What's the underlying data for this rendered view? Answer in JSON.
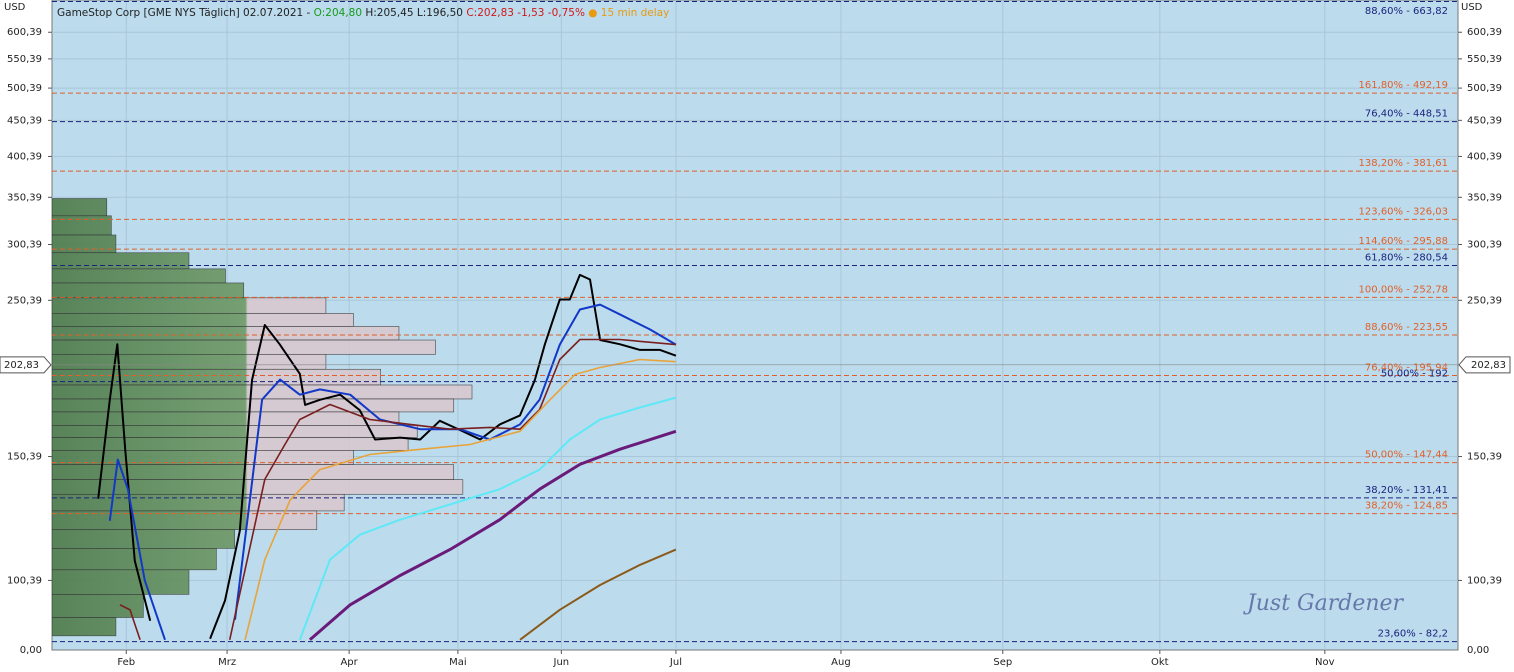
{
  "header": {
    "name": "GameStop Corp [GME NYS Täglich] 02.07.2021 - ",
    "open": "O:204,80",
    "high_low": " H:205,45 L:196,50 ",
    "close": "C:202,83 -1,53 -0,75%",
    "delay": " ● 15 min delay"
  },
  "currency_left": "USD",
  "currency_right": "USD",
  "axis_floor_label_left": "0,00",
  "axis_floor_label_right": "0,00",
  "watermark": "Just  Gardener",
  "chart_data": {
    "type": "line",
    "log_scale": true,
    "grid": true,
    "xlim": [
      0,
      265
    ],
    "ylim": [
      80,
      667
    ],
    "xticks": [
      {
        "value": 14,
        "label": "Feb"
      },
      {
        "value": 33,
        "label": "Mrz"
      },
      {
        "value": 56,
        "label": "Apr"
      },
      {
        "value": 76.5,
        "label": "Mai"
      },
      {
        "value": 96,
        "label": "Jun"
      },
      {
        "value": 117.6,
        "label": "Jul"
      },
      {
        "value": 148.7,
        "label": "Aug"
      },
      {
        "value": 179.2,
        "label": "Sep"
      },
      {
        "value": 208.8,
        "label": "Okt"
      },
      {
        "value": 239.9,
        "label": "Nov"
      }
    ],
    "yticks": [
      {
        "value": 600.39,
        "label": "600,39"
      },
      {
        "value": 550.39,
        "label": "550,39"
      },
      {
        "value": 500.39,
        "label": "500,39"
      },
      {
        "value": 450.39,
        "label": "450,39"
      },
      {
        "value": 400.39,
        "label": "400,39"
      },
      {
        "value": 350.39,
        "label": "350,39"
      },
      {
        "value": 300.39,
        "label": "300,39"
      },
      {
        "value": 250.39,
        "label": "250,39"
      },
      {
        "value": 150.39,
        "label": "150,39"
      },
      {
        "value": 100.39,
        "label": "100,39"
      }
    ],
    "last_price": {
      "value": 202.83,
      "label": "202,83"
    },
    "levels": [
      {
        "label": "88,60% - 663,82",
        "value": 663.82,
        "color": "#1a237e"
      },
      {
        "label": "161,80% - 492,19",
        "value": 492.19,
        "color": "#e0602a"
      },
      {
        "label": "76,40% - 448,51",
        "value": 448.51,
        "color": "#1a237e"
      },
      {
        "label": "138,20% - 381,61",
        "value": 381.61,
        "color": "#e0602a"
      },
      {
        "label": "123,60% - 326,03",
        "value": 326.03,
        "color": "#e0602a"
      },
      {
        "label": "114,60% - 295,88",
        "value": 295.88,
        "color": "#e0602a"
      },
      {
        "label": "61,80% - 280,54",
        "value": 280.54,
        "color": "#1a237e"
      },
      {
        "label": "100,00% - 252,78",
        "value": 252.78,
        "color": "#e0602a"
      },
      {
        "label": "88,60% - 223,55",
        "value": 223.55,
        "color": "#e0602a"
      },
      {
        "label": "76,40% - 195,94",
        "value": 195.94,
        "color": "#e0602a"
      },
      {
        "label": "50,00% - 192",
        "value": 192,
        "color": "#1a237e"
      },
      {
        "label": "50,00% - 147,44",
        "value": 147.44,
        "color": "#e0602a"
      },
      {
        "label": "38,20% - 131,41",
        "value": 131.41,
        "color": "#1a237e"
      },
      {
        "label": "38,20% - 124,85",
        "value": 124.85,
        "color": "#e0602a"
      },
      {
        "label": "23,60% - 82,2",
        "value": 82.2,
        "color": "#1a237e"
      }
    ],
    "volume_profile": {
      "prices": [
        340,
        320,
        300,
        285,
        270,
        260,
        245,
        235,
        225,
        215,
        205,
        195,
        185,
        178,
        170,
        163,
        157,
        150,
        143,
        136,
        130,
        122,
        115,
        108,
        100,
        92,
        86
      ],
      "volumes": [
        60,
        65,
        70,
        150,
        190,
        210,
        300,
        330,
        380,
        420,
        300,
        360,
        460,
        440,
        380,
        400,
        390,
        330,
        440,
        450,
        320,
        290,
        200,
        180,
        150,
        100,
        70
      ]
    },
    "series": [
      {
        "color": "#000000",
        "width": 2,
        "x": [
          8.7,
          10.9,
          12.3,
          13.8,
          15.6,
          18.5,
          24,
          29.8,
          32.6,
          35.4,
          37.7,
          40.1,
          42.9,
          46.7,
          47.7,
          50.5,
          54.3,
          58.0,
          60.9,
          65.6,
          69.4,
          73.1,
          76.9,
          80.7,
          84.4,
          88.2,
          91.0,
          92.9,
          95.7,
          97.6,
          99.5,
          101.4,
          103.3,
          107.0,
          110.8,
          114.6,
          117.6
        ],
        "values": [
          131,
          181,
          217,
          154,
          107,
          88,
          null,
          83,
          94,
          118,
          193,
          231,
          217,
          197,
          178,
          181,
          184,
          175,
          159,
          160,
          159,
          169,
          164,
          159,
          167,
          172,
          193,
          217,
          251,
          251,
          272,
          268,
          220,
          217,
          213,
          213,
          209
        ]
      },
      {
        "color": "#1238c8",
        "width": 2,
        "x": [
          10.9,
          12.4,
          14.3,
          17.5,
          21.3,
          27,
          34.5,
          37.3,
          39.6,
          43.0,
          46.7,
          50.5,
          56.2,
          61.8,
          69.4,
          76.9,
          82.5,
          88.2,
          91.9,
          95.7,
          99.5,
          103.3,
          107.0,
          112.7,
          117.6
        ],
        "values": [
          122,
          148.9,
          135.2,
          100.4,
          82.7,
          null,
          88.3,
          130.6,
          181.1,
          193.3,
          184,
          187.2,
          184,
          169.7,
          164.4,
          164.4,
          159,
          167,
          181.1,
          216.7,
          243,
          246.9,
          239.2,
          227.7,
          216.7
        ]
      },
      {
        "color": "#7a1f1f",
        "width": 1.6,
        "x": [
          12.8,
          14.7,
          16.6,
          25,
          33.5,
          36.4,
          40.1,
          43.9,
          46.7,
          52.4,
          59.9,
          67.5,
          75.0,
          82.5,
          88.2,
          91.9,
          95.7,
          99.5,
          107.0,
          117.6
        ],
        "values": [
          92.7,
          91.2,
          82.7,
          null,
          82.7,
          104,
          139.6,
          156.4,
          169.7,
          178.2,
          169.7,
          167,
          164.4,
          165.4,
          164.4,
          175.3,
          206.4,
          220.3,
          220.3,
          216.7
        ]
      },
      {
        "color": "#e8a33a",
        "width": 1.6,
        "x": [
          36.4,
          40.1,
          44.9,
          50.5,
          59.9,
          69.4,
          78.8,
          88.2,
          93.9,
          98.6,
          103.3,
          110.8,
          117.6
        ],
        "values": [
          82.7,
          107.4,
          130.6,
          144.1,
          151.4,
          154,
          156.4,
          163.3,
          181.1,
          196.6,
          201.1,
          206.4,
          204.9
        ]
      },
      {
        "color": "#5fe8f5",
        "width": 2,
        "x": [
          46.7,
          52.4,
          58.0,
          65.6,
          75.0,
          84.4,
          91.9,
          97.6,
          103.3,
          110.8,
          117.6
        ],
        "values": [
          82.7,
          107.4,
          116.5,
          122.4,
          128.6,
          135.2,
          144.1,
          159,
          169.7,
          176.5,
          182.3
        ]
      },
      {
        "color": "#6a1b7a",
        "width": 3,
        "x": [
          48.6,
          56.2,
          65.6,
          75.0,
          84.4,
          91.9,
          99.5,
          107.0,
          117.6
        ],
        "values": [
          82.7,
          92.7,
          102,
          111,
          122.4,
          135.2,
          146.6,
          154,
          163.3
        ]
      },
      {
        "color": "#8a5a1a",
        "width": 2,
        "x": [
          88.2,
          95.7,
          103.3,
          110.8,
          117.6
        ],
        "values": [
          82.7,
          91.2,
          98.9,
          105.6,
          111
        ]
      }
    ]
  }
}
